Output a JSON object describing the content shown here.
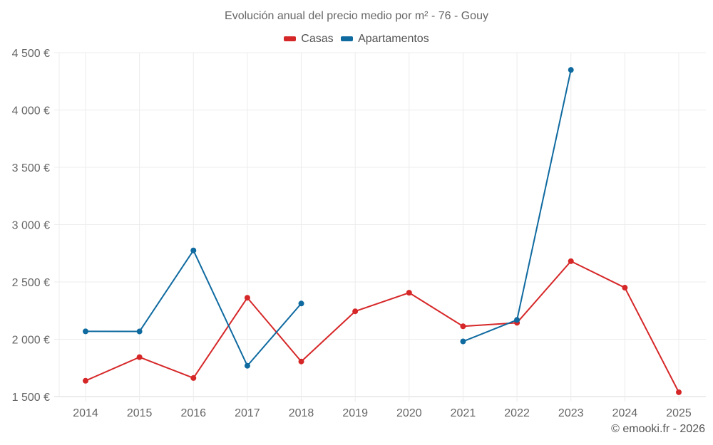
{
  "header": {
    "title": "Evolución anual del precio medio por m² - 76 - Gouy"
  },
  "legend": [
    {
      "label": "Casas",
      "color": "#d62728"
    },
    {
      "label": "Apartamentos",
      "color": "#0f6aa0"
    }
  ],
  "footer": {
    "credit": "© emooki.fr - 2026"
  },
  "chart_data": {
    "type": "line",
    "title": "Evolución anual del precio medio por m² - 76 - Gouy",
    "xlabel": "",
    "ylabel": "",
    "x": [
      2014,
      2015,
      2016,
      2017,
      2018,
      2019,
      2020,
      2021,
      2022,
      2023,
      2024,
      2025
    ],
    "y_ticks": [
      "1 500 €",
      "2 000 €",
      "2 500 €",
      "3 000 €",
      "3 500 €",
      "4 000 €",
      "4 500 €"
    ],
    "y_tick_values": [
      1500,
      2000,
      2500,
      3000,
      3500,
      4000,
      4500
    ],
    "ylim": [
      1500,
      4500
    ],
    "grid": true,
    "legend_position": "top",
    "series": [
      {
        "name": "Casas",
        "color": "#d62728",
        "values": [
          1638,
          1844,
          1662,
          2362,
          1806,
          2244,
          2406,
          2113,
          2144,
          2681,
          2450,
          1538
        ]
      },
      {
        "name": "Apartamentos",
        "color": "#0f6aa0",
        "values": [
          2069,
          2068,
          2775,
          1769,
          2312,
          null,
          null,
          1981,
          2169,
          4350,
          null,
          null
        ]
      }
    ]
  }
}
